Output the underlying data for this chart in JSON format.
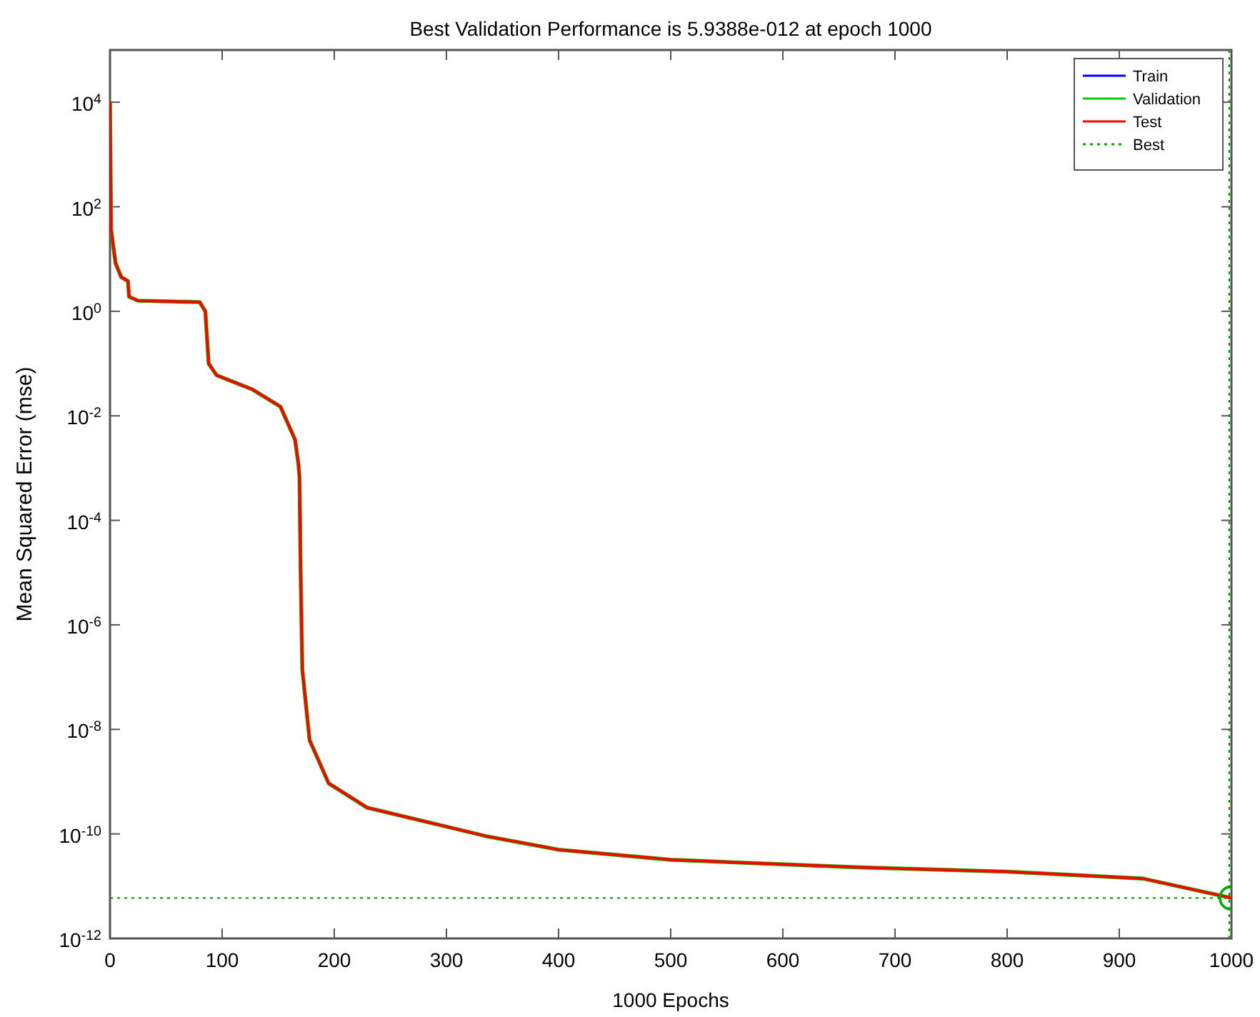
{
  "chart_data": {
    "type": "line",
    "title": "Best Validation Performance is 5.9388e-012 at epoch 1000",
    "xlabel": "1000 Epochs",
    "ylabel": "Mean Squared Error  (mse)",
    "x": [
      0,
      1,
      5,
      10,
      16,
      17,
      25,
      80,
      85,
      88,
      95,
      127,
      152,
      165,
      168,
      169,
      170,
      171.5,
      178,
      195,
      229,
      335,
      400,
      500,
      666,
      800,
      921,
      1000
    ],
    "series": [
      {
        "name": "Train",
        "color": "#0000ff",
        "values": [
          null,
          null,
          null,
          null,
          null,
          null,
          null,
          null,
          null,
          null,
          null,
          null,
          null,
          null,
          null,
          null,
          null,
          null,
          null,
          null,
          null,
          null,
          null,
          null,
          null,
          null,
          null,
          null
        ]
      },
      {
        "name": "Validation",
        "color": "#00cc00",
        "values": [
          10000.0,
          36,
          8.3,
          4.5,
          3.8,
          1.9,
          1.6,
          1.5,
          1.0,
          0.1,
          0.06,
          0.032,
          0.015,
          0.0035,
          0.0012,
          0.00066,
          1e-05,
          1.4e-07,
          6.2e-09,
          9.3e-10,
          3.2e-10,
          9.1e-11,
          5e-11,
          3.2e-11,
          2.3e-11,
          1.9e-11,
          1.4e-11,
          5.9388e-12
        ]
      },
      {
        "name": "Test",
        "color": "#ff0000",
        "values": [
          10000.0,
          36,
          8.3,
          4.5,
          3.8,
          1.9,
          1.6,
          1.5,
          1.0,
          0.1,
          0.06,
          0.032,
          0.015,
          0.0035,
          0.0012,
          0.00066,
          1e-05,
          1.4e-07,
          6.2e-09,
          9.3e-10,
          3.2e-10,
          9.1e-11,
          5e-11,
          3.2e-11,
          2.3e-11,
          1.9e-11,
          1.4e-11,
          5.9388e-12
        ]
      },
      {
        "type": "scatter",
        "marker": "circle",
        "color": "#00aa00",
        "x": [
          1000
        ],
        "values": [
          5.9388e-12
        ]
      }
    ],
    "xlim": [
      0,
      1000
    ],
    "xticks": [
      0,
      100,
      200,
      300,
      400,
      500,
      600,
      700,
      800,
      900,
      1000
    ],
    "ylim": [
      1e-12,
      100000.0
    ],
    "yticks": [
      {
        "value": 1e-12,
        "label": "10$^{-12}$"
      },
      {
        "value": 1e-10,
        "label": "10$^{-10}$"
      },
      {
        "value": 1e-08,
        "label": "10$^{-8}$"
      },
      {
        "value": 1e-06,
        "label": "10$^{-6}$"
      },
      {
        "value": 0.0001,
        "label": "10$^{-4}$"
      },
      {
        "value": 0.01,
        "label": "10$^{-2}$"
      },
      {
        "value": 1,
        "label": "10$^{0}$"
      },
      {
        "value": 100,
        "label": "10$^{2}$"
      },
      {
        "value": 10000.0,
        "label": "10$^{4}$"
      }
    ],
    "ref_lines": [
      {
        "axis": "y",
        "value": 5.9388e-12,
        "label": "Best",
        "color": "#00aa00",
        "line_style": "dotted"
      },
      {
        "axis": "x",
        "value": 1000,
        "color": "#00aa00",
        "line_style": "dotted"
      }
    ],
    "log": true,
    "legend": "top right"
  }
}
